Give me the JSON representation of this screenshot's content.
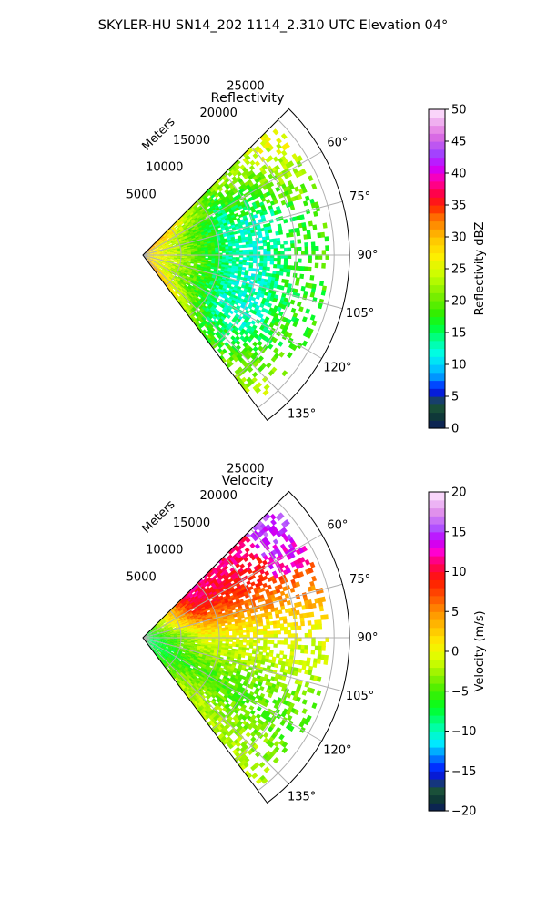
{
  "suptitle": "SKYLER-HU  SN14_202  1114_2.310 UTC Elevation 04°",
  "chart_data": [
    {
      "type": "heatmap",
      "projection": "polar-sector",
      "title": "Reflectivity",
      "range_label": "Meters",
      "range_ticks": [
        5000,
        10000,
        15000,
        20000,
        25000
      ],
      "range_ticks_text": [
        "5000",
        "10000",
        "15000",
        "20000",
        "25000"
      ],
      "range_max": 27000,
      "azimuth_range": [
        45,
        143
      ],
      "azimuth_ticks": [
        60,
        75,
        90,
        105,
        120,
        135
      ],
      "azimuth_ticks_text": [
        "60°",
        "75°",
        "90°",
        "105°",
        "120°",
        "135°"
      ],
      "grid": true,
      "colorbar": {
        "label": "Reflectivity dBZ",
        "min": 0,
        "max": 50,
        "ticks": [
          0,
          5,
          10,
          15,
          20,
          25,
          30,
          35,
          40,
          45,
          50
        ],
        "ticks_text": [
          "0",
          "5",
          "10",
          "15",
          "20",
          "25",
          "30",
          "35",
          "40",
          "45",
          "50"
        ],
        "stops": [
          {
            "v": 0,
            "c": "#0b1b5e"
          },
          {
            "v": 2,
            "c": "#0f3a36"
          },
          {
            "v": 4,
            "c": "#1f5b3a"
          },
          {
            "v": 5,
            "c": "#0a10c0"
          },
          {
            "v": 6.5,
            "c": "#0030ff"
          },
          {
            "v": 8,
            "c": "#0090ff"
          },
          {
            "v": 10,
            "c": "#00d8ff"
          },
          {
            "v": 12,
            "c": "#00ffe0"
          },
          {
            "v": 14,
            "c": "#00ff90"
          },
          {
            "v": 16,
            "c": "#00ff30"
          },
          {
            "v": 18,
            "c": "#30ee00"
          },
          {
            "v": 21,
            "c": "#80ee00"
          },
          {
            "v": 24,
            "c": "#c8ff00"
          },
          {
            "v": 27,
            "c": "#ffee00"
          },
          {
            "v": 30,
            "c": "#ffc000"
          },
          {
            "v": 33,
            "c": "#ff7000"
          },
          {
            "v": 35,
            "c": "#ff2000"
          },
          {
            "v": 37,
            "c": "#ff0050"
          },
          {
            "v": 39,
            "c": "#ff00b0"
          },
          {
            "v": 41,
            "c": "#cc00ff"
          },
          {
            "v": 43,
            "c": "#a040ff"
          },
          {
            "v": 46,
            "c": "#e070e0"
          },
          {
            "v": 50,
            "c": "#ffe8ff"
          }
        ]
      },
      "field_profile": [
        {
          "r": 0,
          "v": 29
        },
        {
          "r": 3000,
          "v": 25
        },
        {
          "r": 6000,
          "v": 21
        },
        {
          "r": 9000,
          "v": 17
        },
        {
          "r": 12000,
          "v": 13
        },
        {
          "r": 16000,
          "v": 13
        },
        {
          "r": 20000,
          "v": 17
        },
        {
          "r": 26000,
          "v": 19
        }
      ],
      "edge_boost": 6
    },
    {
      "type": "heatmap",
      "projection": "polar-sector",
      "title": "Velocity",
      "range_label": "Meters",
      "range_ticks": [
        5000,
        10000,
        15000,
        20000,
        25000
      ],
      "range_ticks_text": [
        "5000",
        "10000",
        "15000",
        "20000",
        "25000"
      ],
      "range_max": 27000,
      "azimuth_range": [
        45,
        143
      ],
      "azimuth_ticks": [
        60,
        75,
        90,
        105,
        120,
        135
      ],
      "azimuth_ticks_text": [
        "60°",
        "75°",
        "90°",
        "105°",
        "120°",
        "135°"
      ],
      "grid": true,
      "colorbar": {
        "label": "Velocity (m/s)",
        "min": -20,
        "max": 20,
        "ticks": [
          -20,
          -15,
          -10,
          -5,
          0,
          5,
          10,
          15,
          20
        ],
        "ticks_text": [
          "−20",
          "−15",
          "−10",
          "−5",
          "0",
          "5",
          "10",
          "15",
          "20"
        ],
        "stops": [
          {
            "v": -20,
            "c": "#0b1b5e"
          },
          {
            "v": -18.5,
            "c": "#0f3a36"
          },
          {
            "v": -17,
            "c": "#1f5b3a"
          },
          {
            "v": -16,
            "c": "#0a10c0"
          },
          {
            "v": -14.5,
            "c": "#0030ff"
          },
          {
            "v": -13,
            "c": "#0090ff"
          },
          {
            "v": -11.5,
            "c": "#00e8ff"
          },
          {
            "v": -10,
            "c": "#00ffc0"
          },
          {
            "v": -8.5,
            "c": "#00ff70"
          },
          {
            "v": -7,
            "c": "#00ff20"
          },
          {
            "v": -5,
            "c": "#40ee00"
          },
          {
            "v": -3,
            "c": "#90f000"
          },
          {
            "v": -1,
            "c": "#d8ff00"
          },
          {
            "v": 1,
            "c": "#ffee00"
          },
          {
            "v": 3,
            "c": "#ffc000"
          },
          {
            "v": 5,
            "c": "#ff9000"
          },
          {
            "v": 7,
            "c": "#ff5000"
          },
          {
            "v": 9,
            "c": "#ff1800"
          },
          {
            "v": 11,
            "c": "#ff0060"
          },
          {
            "v": 12.5,
            "c": "#ff00d0"
          },
          {
            "v": 14,
            "c": "#c000ff"
          },
          {
            "v": 15.5,
            "c": "#b050ff"
          },
          {
            "v": 17.5,
            "c": "#e090ec"
          },
          {
            "v": 20,
            "c": "#ffe8ff"
          }
        ]
      },
      "azimuth_field": [
        {
          "az": 50,
          "v": 11
        },
        {
          "az": 62,
          "v": 9
        },
        {
          "az": 72,
          "v": 6
        },
        {
          "az": 82,
          "v": 2
        },
        {
          "az": 92,
          "v": -1
        },
        {
          "az": 102,
          "v": -2
        },
        {
          "az": 112,
          "v": -4
        },
        {
          "az": 122,
          "v": -5
        },
        {
          "az": 132,
          "v": -3
        },
        {
          "az": 142,
          "v": -2
        }
      ],
      "near_range_value": -9,
      "near_range_extent": 8000
    }
  ]
}
